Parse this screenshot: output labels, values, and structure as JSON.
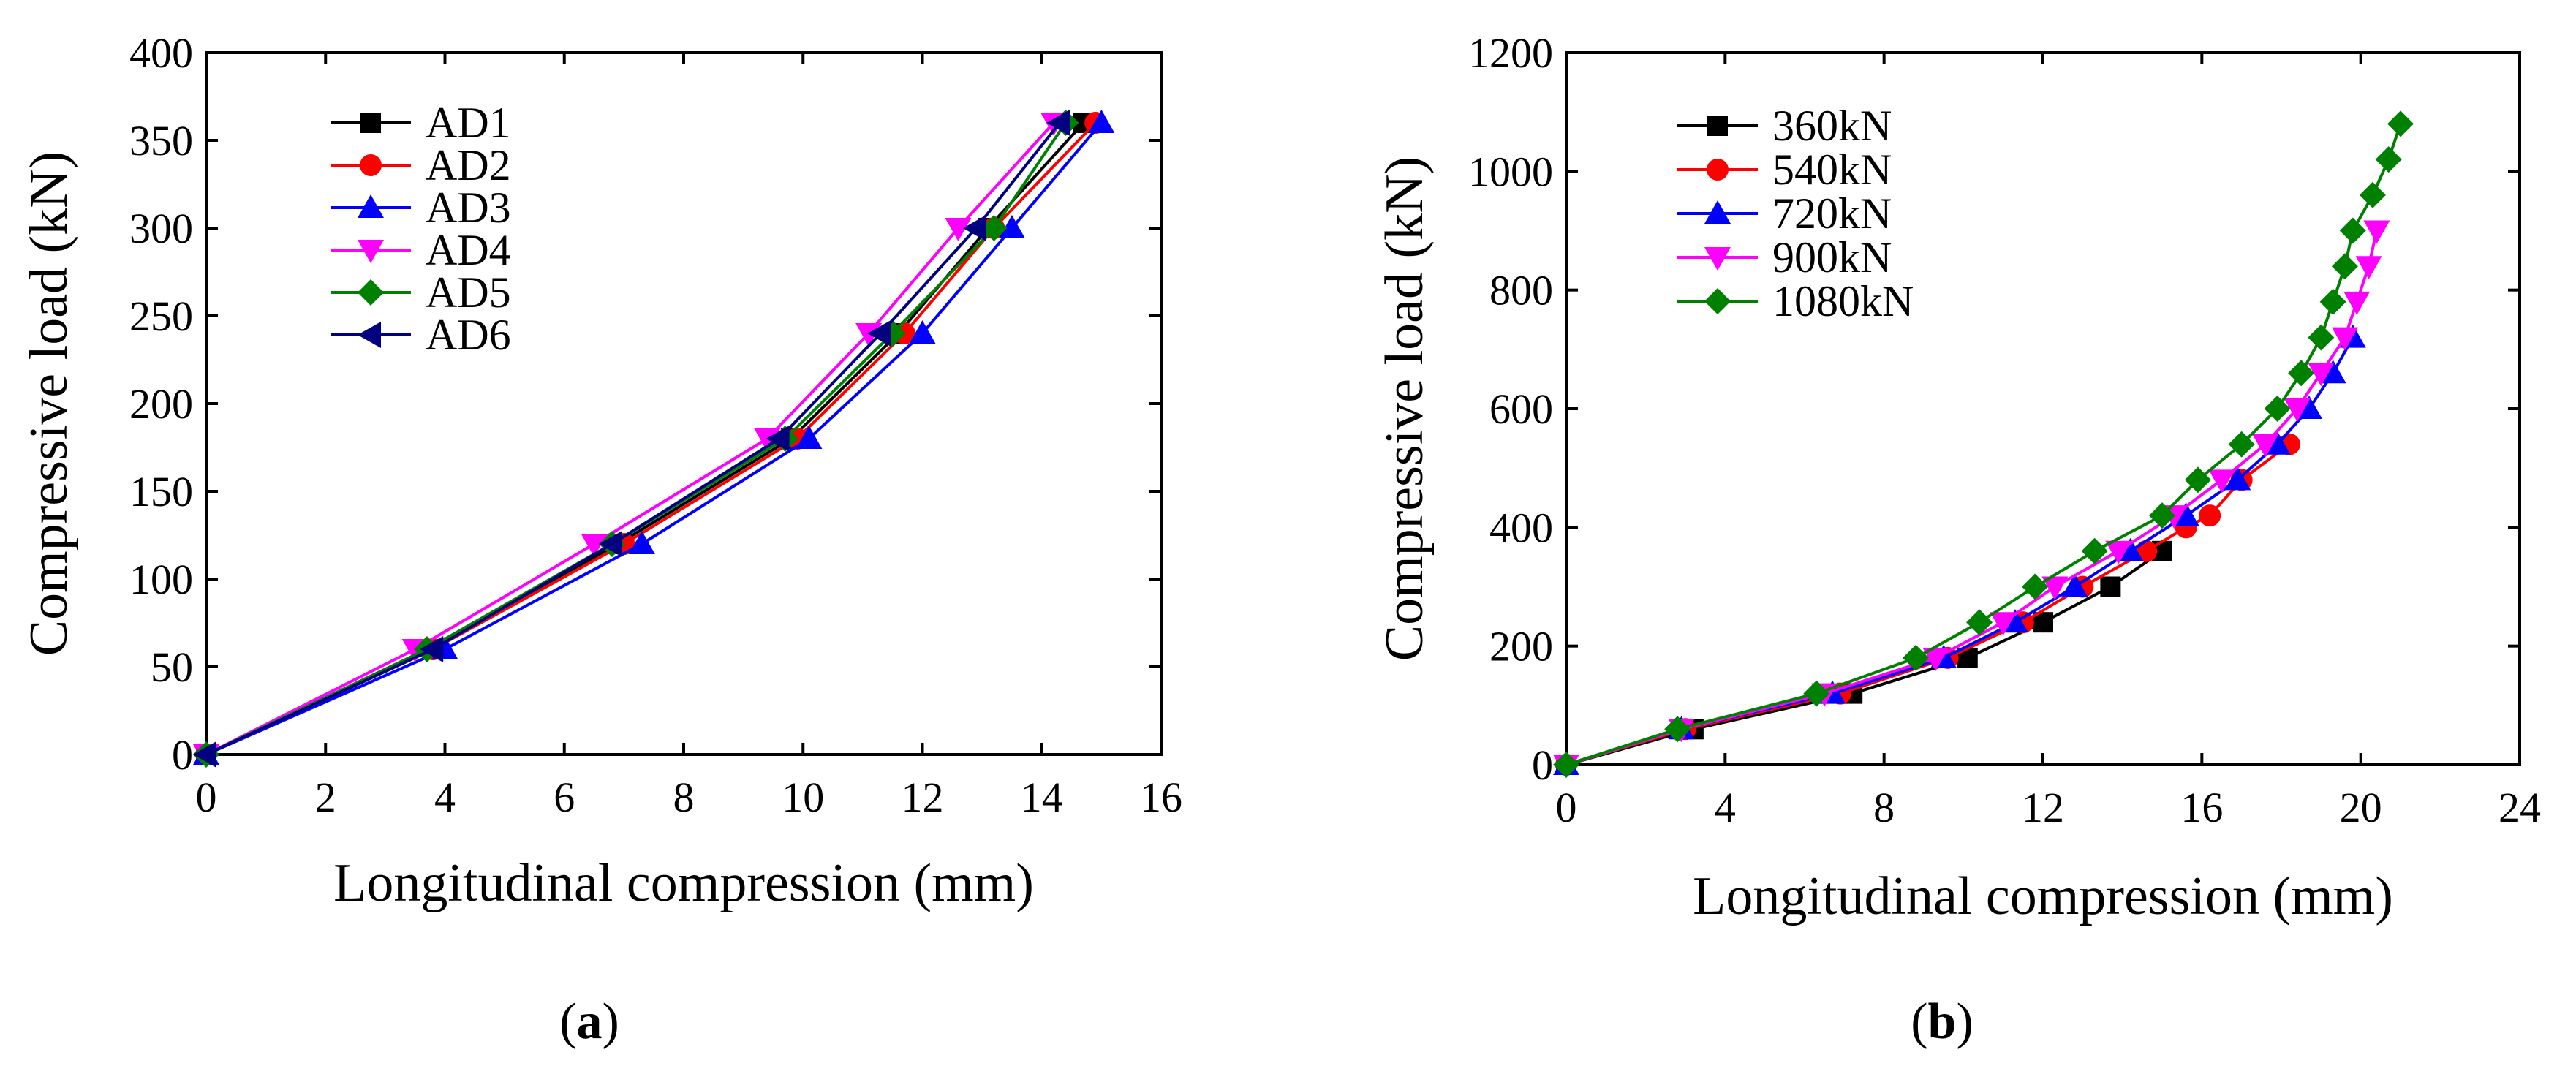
{
  "panels": [
    {
      "panel_label": "a",
      "chart_data": {
        "type": "line",
        "title": "",
        "xlabel": "Longitudinal compression (mm)",
        "ylabel": "Compressive load (kN)",
        "xlim": [
          0,
          16
        ],
        "ylim": [
          0,
          400
        ],
        "xticks": [
          0,
          2,
          4,
          6,
          8,
          10,
          12,
          14,
          16
        ],
        "yticks": [
          0,
          50,
          100,
          150,
          200,
          250,
          300,
          350,
          400
        ],
        "grid": false,
        "legend_position": "top-left",
        "series": [
          {
            "name": "AD1",
            "color": "#000000",
            "marker": "square",
            "x": [
              0,
              3.8,
              6.9,
              9.8,
              11.6,
              13.1,
              14.7
            ],
            "y": [
              0,
              60,
              120,
              180,
              240,
              300,
              360
            ]
          },
          {
            "name": "AD2",
            "color": "#ff0000",
            "marker": "circle",
            "x": [
              0,
              3.8,
              7.0,
              9.9,
              11.7,
              13.2,
              14.9
            ],
            "y": [
              0,
              60,
              120,
              180,
              240,
              300,
              360
            ]
          },
          {
            "name": "AD3",
            "color": "#0000ff",
            "marker": "triangle-up",
            "x": [
              0,
              4.0,
              7.3,
              10.1,
              12.0,
              13.5,
              15.0
            ],
            "y": [
              0,
              60,
              120,
              180,
              240,
              300,
              360
            ]
          },
          {
            "name": "AD4",
            "color": "#ff00ff",
            "marker": "triangle-down",
            "x": [
              0,
              3.5,
              6.5,
              9.4,
              11.1,
              12.6,
              14.2
            ],
            "y": [
              0,
              60,
              120,
              180,
              240,
              300,
              360
            ]
          },
          {
            "name": "AD5",
            "color": "#008000",
            "marker": "diamond",
            "x": [
              0,
              3.7,
              6.8,
              9.7,
              11.5,
              13.2,
              14.4
            ],
            "y": [
              0,
              60,
              120,
              180,
              240,
              300,
              360
            ]
          },
          {
            "name": "AD6",
            "color": "#000080",
            "marker": "triangle-left",
            "x": [
              0,
              3.8,
              6.8,
              9.6,
              11.3,
              12.9,
              14.3
            ],
            "y": [
              0,
              60,
              120,
              180,
              240,
              300,
              360
            ]
          }
        ]
      }
    },
    {
      "panel_label": "b",
      "chart_data": {
        "type": "line",
        "title": "",
        "xlabel": "Longitudinal compression (mm)",
        "ylabel": "Compressive load (kN)",
        "xlim": [
          0,
          24
        ],
        "ylim": [
          0,
          1200
        ],
        "xticks": [
          0,
          4,
          8,
          12,
          16,
          20,
          24
        ],
        "yticks": [
          0,
          200,
          400,
          600,
          800,
          1000,
          1200
        ],
        "grid": false,
        "legend_position": "top-left",
        "series": [
          {
            "name": "360kN",
            "color": "#000000",
            "marker": "square",
            "x": [
              0,
              3.2,
              7.2,
              10.1,
              12.0,
              13.7,
              15.0
            ],
            "y": [
              0,
              60,
              120,
              180,
              240,
              300,
              360
            ]
          },
          {
            "name": "540kN",
            "color": "#ff0000",
            "marker": "circle",
            "x": [
              0,
              3.0,
              6.9,
              9.6,
              11.5,
              13.0,
              14.6,
              15.6,
              16.2,
              17.0,
              18.2
            ],
            "y": [
              0,
              60,
              120,
              180,
              240,
              300,
              360,
              400,
              420,
              480,
              540
            ]
          },
          {
            "name": "720kN",
            "color": "#0000ff",
            "marker": "triangle-up",
            "x": [
              0,
              2.9,
              6.7,
              9.5,
              11.3,
              12.8,
              14.2,
              15.6,
              16.9,
              17.9,
              18.7,
              19.3,
              19.8
            ],
            "y": [
              0,
              60,
              120,
              180,
              240,
              300,
              360,
              420,
              480,
              540,
              600,
              660,
              720
            ]
          },
          {
            "name": "900kN",
            "color": "#ff00ff",
            "marker": "triangle-down",
            "x": [
              0,
              2.9,
              6.5,
              9.3,
              11.0,
              12.3,
              13.9,
              15.3,
              16.5,
              17.6,
              18.4,
              19.0,
              19.6,
              19.9,
              20.2,
              20.4
            ],
            "y": [
              0,
              60,
              120,
              180,
              240,
              300,
              360,
              420,
              480,
              540,
              600,
              660,
              720,
              780,
              840,
              900
            ]
          },
          {
            "name": "1080kN",
            "color": "#008000",
            "marker": "diamond",
            "x": [
              0,
              2.8,
              6.3,
              8.8,
              10.4,
              11.8,
              13.3,
              15.0,
              15.9,
              17.0,
              17.9,
              18.5,
              19.0,
              19.3,
              19.6,
              19.8,
              20.3,
              20.7,
              21.0
            ],
            "y": [
              0,
              60,
              120,
              180,
              240,
              300,
              360,
              420,
              480,
              540,
              600,
              660,
              720,
              780,
              840,
              900,
              960,
              1020,
              1080
            ]
          }
        ]
      }
    }
  ]
}
